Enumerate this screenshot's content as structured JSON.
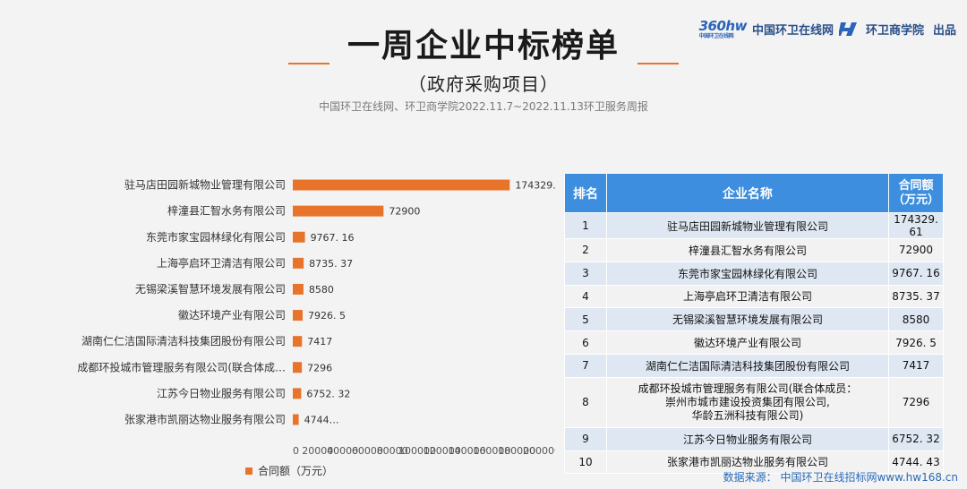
{
  "brand": {
    "logo_text": "360hw",
    "logo_sub": "中国环卫在线网",
    "site_name": "中国环卫在线网",
    "school_name": "环卫商学院",
    "publish": "出品"
  },
  "header": {
    "title": "一周企业中标榜单",
    "subtitle": "（政府采购项目）",
    "source_line": "中国环卫在线网、环卫商学院2022.11.7~2022.11.13环卫服务周报"
  },
  "chart_data": {
    "type": "bar",
    "orientation": "horizontal",
    "categories": [
      "驻马店田园新城物业管理有限公司",
      "梓潼县汇智水务有限公司",
      "东莞市家宝园林绿化有限公司",
      "上海亭启环卫清洁有限公司",
      "无锡梁溪智慧环境发展有限公司",
      "徽达环境产业有限公司",
      "湖南仁仁洁国际清洁科技集团股份有限公司",
      "成都环投城市管理服务有限公司(联合体成…",
      "江苏今日物业服务有限公司",
      "张家港市凯丽达物业服务有限公司"
    ],
    "values": [
      174329.61,
      72900,
      9767.16,
      8735.37,
      8580,
      7926.5,
      7417,
      7296,
      6752.32,
      4744.43
    ],
    "value_labels": [
      "174329. 61",
      "72900",
      "9767. 16",
      "8735. 37",
      "8580",
      "7926. 5",
      "7417",
      "7296",
      "6752. 32",
      "4744…"
    ],
    "x_ticks": [
      "0",
      "20000",
      "40000",
      "60000",
      "80000",
      "100000",
      "120000",
      "140000",
      "160000",
      "180000",
      "200000"
    ],
    "xlim": [
      0,
      200000
    ],
    "series_name": "合同额（万元）",
    "legend_position": "bottom-left",
    "grid": false,
    "bar_color": "#e8742c"
  },
  "table": {
    "headers": [
      "排名",
      "企业名称",
      "合同额\n（万元）"
    ],
    "rows": [
      {
        "rank": "1",
        "name": "驻马店田园新城物业管理有限公司",
        "amount": "174329. 61"
      },
      {
        "rank": "2",
        "name": "梓潼县汇智水务有限公司",
        "amount": "72900"
      },
      {
        "rank": "3",
        "name": "东莞市家宝园林绿化有限公司",
        "amount": "9767. 16"
      },
      {
        "rank": "4",
        "name": "上海亭启环卫清洁有限公司",
        "amount": "8735. 37"
      },
      {
        "rank": "5",
        "name": "无锡梁溪智慧环境发展有限公司",
        "amount": "8580"
      },
      {
        "rank": "6",
        "name": "徽达环境产业有限公司",
        "amount": "7926. 5"
      },
      {
        "rank": "7",
        "name": "湖南仁仁洁国际清洁科技集团股份有限公司",
        "amount": "7417"
      },
      {
        "rank": "8",
        "name": "成都环投城市管理服务有限公司(联合体成员：\n崇州市城市建设投资集团有限公司,\n华龄五洲科技有限公司)",
        "amount": "7296"
      },
      {
        "rank": "9",
        "name": "江苏今日物业服务有限公司",
        "amount": "6752. 32"
      },
      {
        "rank": "10",
        "name": "张家港市凯丽达物业服务有限公司",
        "amount": "4744. 43"
      }
    ]
  },
  "footer": {
    "source": "数据来源：  中国环卫在线招标网www.hw168.cn"
  },
  "colors": {
    "accent": "#e8742c",
    "table_header": "#3d8ede",
    "row_odd": "#dfe8f2",
    "row_even": "#f2f2f2"
  }
}
